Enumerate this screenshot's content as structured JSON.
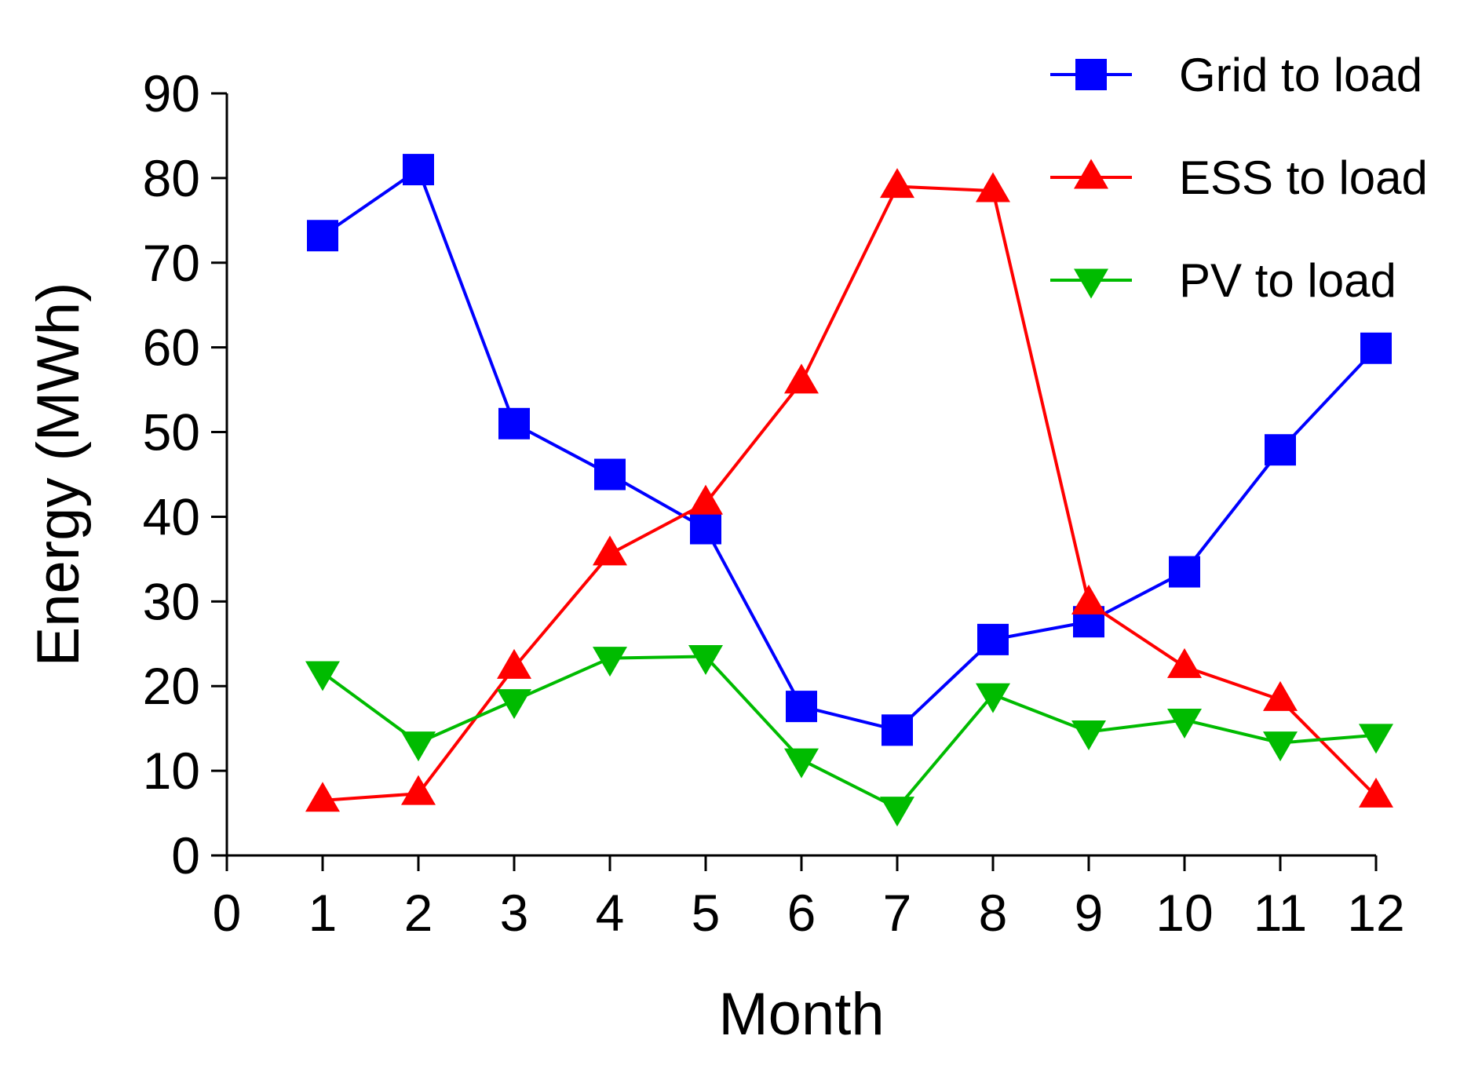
{
  "chart_data": {
    "type": "line",
    "title": "",
    "xlabel": "Month",
    "ylabel": "Energy (MWh)",
    "xlim": [
      0,
      12
    ],
    "ylim": [
      0,
      90
    ],
    "x": [
      1,
      2,
      3,
      4,
      5,
      6,
      7,
      8,
      9,
      10,
      11,
      12
    ],
    "xticks": [
      "0",
      "1",
      "2",
      "3",
      "4",
      "5",
      "6",
      "7",
      "8",
      "9",
      "10",
      "11",
      "12"
    ],
    "yticks": [
      "0",
      "10",
      "20",
      "30",
      "40",
      "50",
      "60",
      "70",
      "80",
      "90"
    ],
    "grid": false,
    "legend_position": "top-right",
    "series": [
      {
        "name": "Grid to load",
        "color": "#0000ff",
        "marker": "square",
        "values": [
          73.2,
          81.0,
          51.0,
          45.0,
          38.6,
          17.6,
          14.8,
          25.5,
          27.6,
          33.5,
          47.9,
          59.9
        ]
      },
      {
        "name": "ESS to load",
        "color": "#ff0000",
        "marker": "triangle-up",
        "values": [
          6.5,
          7.3,
          22.2,
          35.6,
          41.6,
          55.9,
          79.0,
          78.5,
          29.8,
          22.3,
          18.4,
          7.0
        ]
      },
      {
        "name": "PV to load",
        "color": "#00bb00",
        "marker": "triangle-down",
        "values": [
          21.6,
          13.3,
          18.3,
          23.3,
          23.5,
          11.3,
          5.6,
          19.0,
          14.6,
          16.0,
          13.3,
          14.2
        ]
      }
    ]
  }
}
